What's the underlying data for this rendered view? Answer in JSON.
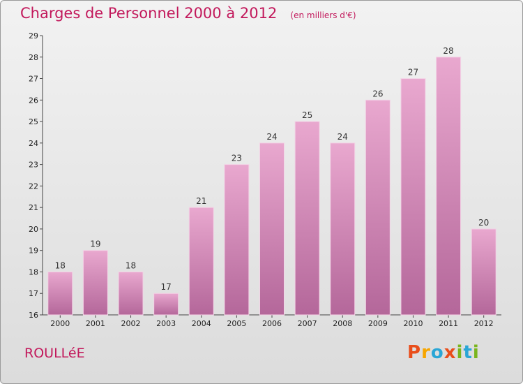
{
  "header": {
    "title": "Charges de Personnel 2000 à 2012",
    "subtitle": "(en milliers d'€)"
  },
  "footer": {
    "commune": "ROULLéE",
    "logo": "Proxiti",
    "logo_colors": [
      "#e94e1b",
      "#f7a600",
      "#2aa6d6",
      "#e94e1b",
      "#7ab51d",
      "#2aa6d6",
      "#7ab51d"
    ]
  },
  "colors": {
    "bar_top": "#e9a8cf",
    "bar_bottom": "#b4679a",
    "title": "#c2185b"
  },
  "chart_data": {
    "type": "bar",
    "categories": [
      "2000",
      "2001",
      "2002",
      "2003",
      "2004",
      "2005",
      "2006",
      "2007",
      "2008",
      "2009",
      "2010",
      "2011",
      "2012"
    ],
    "values": [
      18,
      19,
      18,
      17,
      21,
      23,
      24,
      25,
      24,
      26,
      27,
      28,
      20
    ],
    "title": "Charges de Personnel 2000 à 2012",
    "subtitle": "(en milliers d'€)",
    "ylim": [
      16,
      29
    ],
    "yticks": [
      16,
      17,
      18,
      19,
      20,
      21,
      22,
      23,
      24,
      25,
      26,
      27,
      28,
      29
    ],
    "grid": false,
    "data_labels": true
  }
}
